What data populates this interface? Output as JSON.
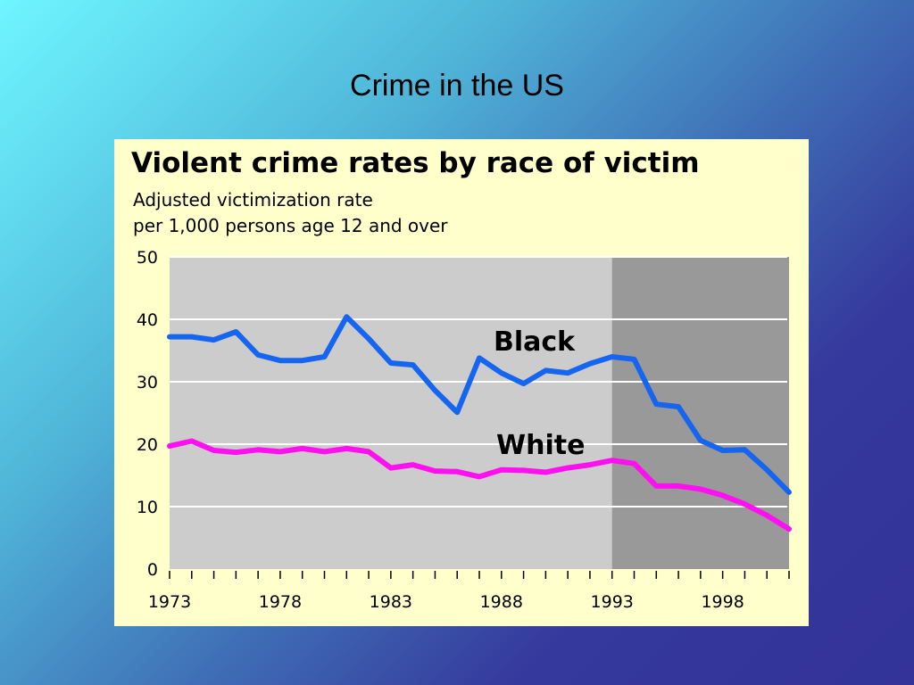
{
  "slide": {
    "title": "Crime in the US",
    "background_colors": [
      "#6ff6ff",
      "#3f6fb6",
      "#33339a"
    ]
  },
  "chart_data": {
    "type": "line",
    "title": "Violent crime rates by race of victim",
    "subtitle_lines": [
      "Adjusted victimization rate",
      "per 1,000 persons age 12 and over"
    ],
    "xlabel": "",
    "ylabel": "",
    "xlim": [
      1973,
      2001
    ],
    "ylim": [
      0,
      50
    ],
    "yticks": [
      0,
      10,
      20,
      30,
      40,
      50
    ],
    "xtick_labels": [
      1973,
      1978,
      1983,
      1988,
      1993,
      1998
    ],
    "shaded_region_start": 1993,
    "grid": "horizontal",
    "legend": "inline labels",
    "x": [
      1973,
      1974,
      1975,
      1976,
      1977,
      1978,
      1979,
      1980,
      1981,
      1982,
      1983,
      1984,
      1985,
      1986,
      1987,
      1988,
      1989,
      1990,
      1991,
      1992,
      1993,
      1994,
      1995,
      1996,
      1997,
      1998,
      1999,
      2000,
      2001
    ],
    "series": [
      {
        "name": "Black",
        "color": "#1565f0",
        "values": [
          37.2,
          37.2,
          36.7,
          38.0,
          34.3,
          33.4,
          33.4,
          34.0,
          40.4,
          36.9,
          33.0,
          32.7,
          28.6,
          25.1,
          33.8,
          31.4,
          29.7,
          31.8,
          31.4,
          32.9,
          34.0,
          33.6,
          26.4,
          26.0,
          20.6,
          19.0,
          19.1,
          15.9,
          12.3
        ]
      },
      {
        "name": "White",
        "color": "#ff10f0",
        "values": [
          19.7,
          20.5,
          19.0,
          18.7,
          19.1,
          18.8,
          19.3,
          18.8,
          19.3,
          18.8,
          16.2,
          16.7,
          15.7,
          15.6,
          14.8,
          15.9,
          15.8,
          15.5,
          16.2,
          16.7,
          17.4,
          16.9,
          13.3,
          13.3,
          12.8,
          11.8,
          10.4,
          8.6,
          6.4
        ]
      }
    ],
    "colors": {
      "panel_background": "#ffffcc",
      "plot_background": "#cccccc",
      "shaded_background": "#999999",
      "gridline": "#ffffff"
    }
  }
}
